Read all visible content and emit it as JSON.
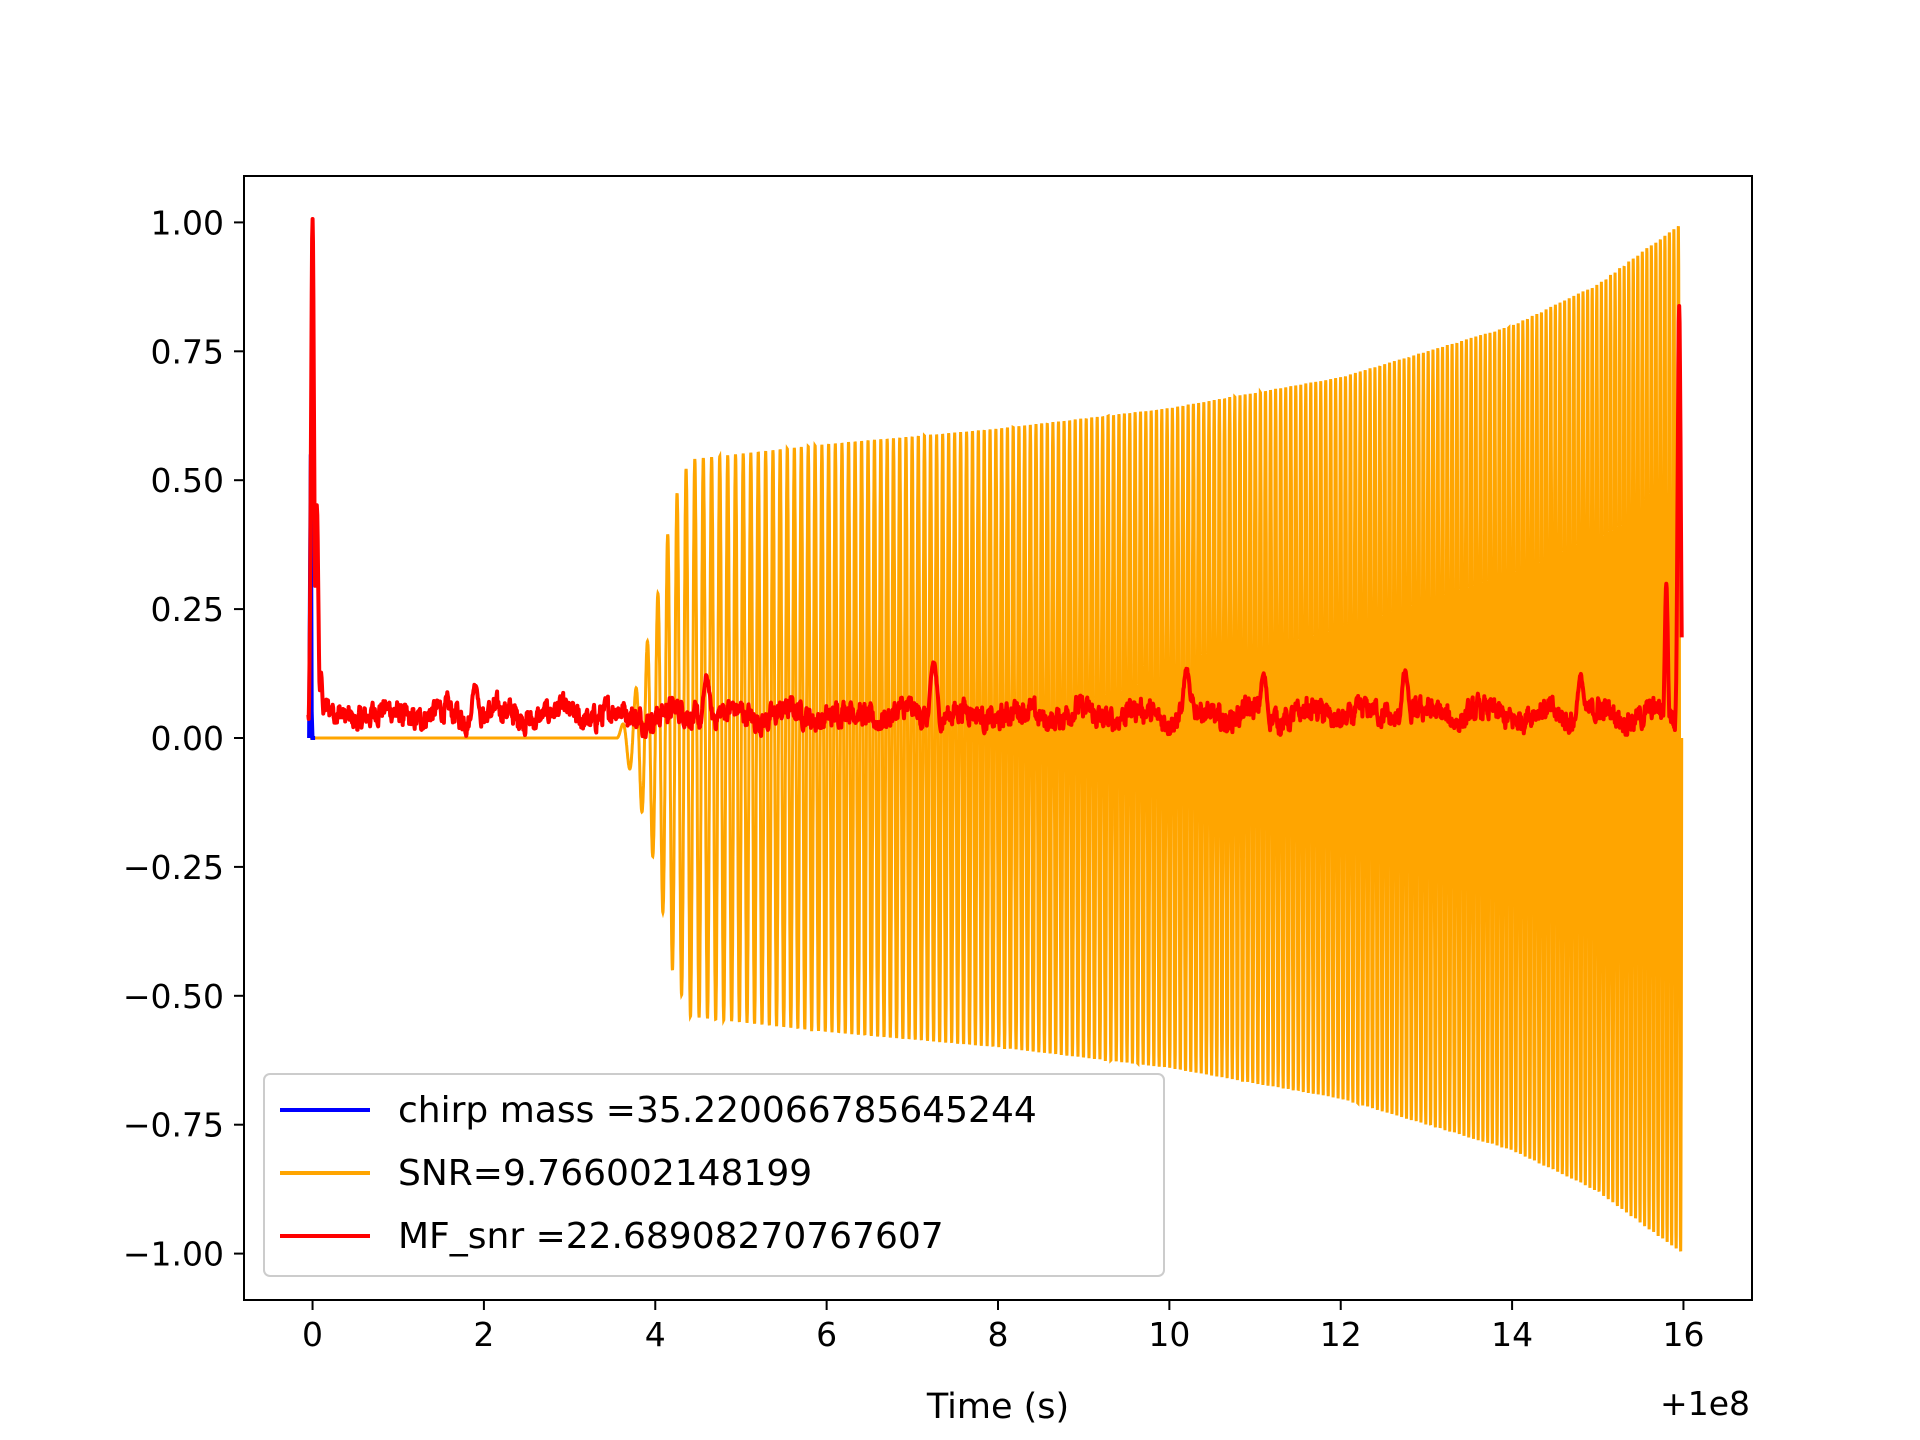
{
  "chart_data": {
    "type": "line",
    "title": "",
    "xlabel": "Time (s)",
    "ylabel": "",
    "x_offset_label": "+1e8",
    "xlim": [
      -0.8,
      16.8
    ],
    "ylim": [
      -1.09,
      1.09
    ],
    "x_ticks": [
      0,
      2,
      4,
      6,
      8,
      10,
      12,
      14,
      16
    ],
    "x_tick_labels": [
      "0",
      "2",
      "4",
      "6",
      "8",
      "10",
      "12",
      "14",
      "16"
    ],
    "y_ticks": [
      1.0,
      0.75,
      0.5,
      0.25,
      0.0,
      -0.25,
      -0.5,
      -0.75,
      -1.0
    ],
    "y_tick_labels": [
      "1.00",
      "0.75",
      "0.50",
      "0.25",
      "0.00",
      "−0.25",
      "−0.50",
      "−0.75",
      "−1.00"
    ],
    "grid": false,
    "legend_position": "lower-left",
    "series": [
      {
        "name": "chirp mass =35.220066785645244",
        "color": "#0000ff",
        "kind": "spike",
        "points": [
          [
            -0.04,
            0.0
          ],
          [
            -0.03,
            0.3
          ],
          [
            -0.02,
            0.55
          ],
          [
            -0.01,
            0.05
          ],
          [
            0.0,
            0.0
          ],
          [
            0.03,
            0.0
          ]
        ]
      },
      {
        "name": "SNR=9.766002148199",
        "color": "#ffa500",
        "kind": "chirp",
        "start": 3.55,
        "end": 15.98,
        "cycles": 190,
        "envelope": [
          [
            0.0,
            0.0
          ],
          [
            3.55,
            0.0
          ],
          [
            3.75,
            0.08
          ],
          [
            4.0,
            0.25
          ],
          [
            4.2,
            0.45
          ],
          [
            4.4,
            0.54
          ],
          [
            6.0,
            0.57
          ],
          [
            8.0,
            0.6
          ],
          [
            10.0,
            0.64
          ],
          [
            12.0,
            0.7
          ],
          [
            14.0,
            0.8
          ],
          [
            15.0,
            0.88
          ],
          [
            15.98,
            1.0
          ]
        ]
      },
      {
        "name": "MF_snr =22.68908270767607",
        "color": "#ff0000",
        "kind": "noise",
        "start": -0.05,
        "end": 15.98,
        "baseline": 0.045,
        "amplitude": 0.03,
        "peaks": [
          [
            0.0,
            1.0
          ],
          [
            0.05,
            0.45
          ],
          [
            0.1,
            0.12
          ],
          [
            1.9,
            0.11
          ],
          [
            4.6,
            0.12
          ],
          [
            7.25,
            0.15
          ],
          [
            10.2,
            0.13
          ],
          [
            11.1,
            0.12
          ],
          [
            12.75,
            0.13
          ],
          [
            14.8,
            0.12
          ],
          [
            15.8,
            0.3
          ],
          [
            15.95,
            0.84
          ]
        ]
      }
    ]
  }
}
